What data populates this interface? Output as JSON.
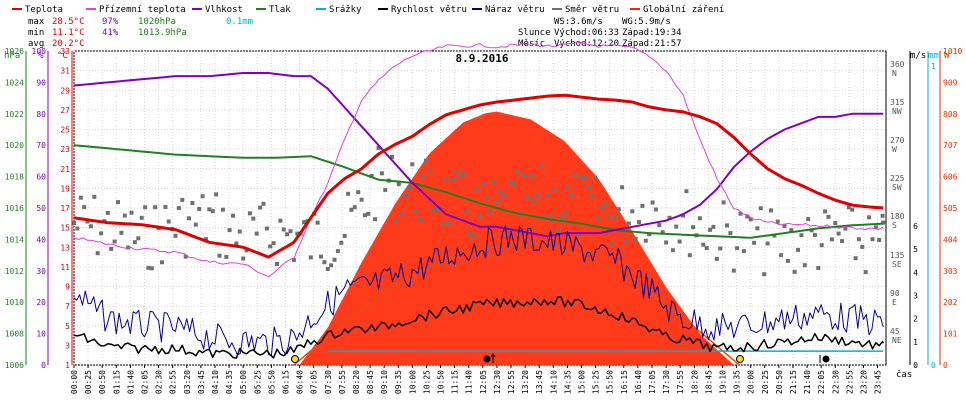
{
  "legend": [
    {
      "label": "Teplota",
      "color": "#e00000"
    },
    {
      "label": "Přízemní teplota",
      "color": "#e040e0"
    },
    {
      "label": "Vlhkost",
      "color": "#8000c0"
    },
    {
      "label": "Tlak",
      "color": "#208020"
    },
    {
      "label": "Srážky",
      "color": "#00b0d0"
    },
    {
      "label": "Rychlost větru",
      "color": "#000000"
    },
    {
      "label": "Náraz větru",
      "color": "#000090"
    },
    {
      "label": "Směr větru",
      "color": "#707070"
    },
    {
      "label": "Globální záření",
      "color": "#e03000"
    }
  ],
  "stats": {
    "max_label": "max",
    "max_temp": "28.5°C",
    "max_hum": "97%",
    "max_press": "1020hPa",
    "rain": "0.1mm",
    "min_label": "min",
    "min_temp": "11.1°C",
    "min_hum": "41%",
    "min_press": "1013.9hPa",
    "avg_label": "avg",
    "avg_temp": "20.2°C"
  },
  "wind": {
    "ws": "WS:3.6m/s",
    "wg": "WG:5.9m/s"
  },
  "sun": {
    "label": "Slunce",
    "rise": "Východ:06:33",
    "set": "Západ:19:34"
  },
  "moon": {
    "label": "Měsíc",
    "rise": "Východ:12:20",
    "set": "Západ:21:57"
  },
  "date": "8.9.2016",
  "axis_units": {
    "hpa": "hPa",
    "pct": "%",
    "degc": "°C",
    "ms": "m/s",
    "mm": "mm",
    "w": "W",
    "time": "čas"
  },
  "chart_data": {
    "type": "line",
    "title": "8.9.2016",
    "x_ticks": [
      "00:00",
      "00:25",
      "00:50",
      "01:15",
      "01:40",
      "02:05",
      "02:30",
      "02:55",
      "03:20",
      "03:45",
      "04:10",
      "04:35",
      "05:00",
      "05:25",
      "05:50",
      "06:15",
      "06:40",
      "07:05",
      "07:30",
      "07:55",
      "08:20",
      "08:45",
      "09:10",
      "09:35",
      "10:00",
      "10:25",
      "10:50",
      "11:15",
      "11:40",
      "12:05",
      "12:30",
      "12:55",
      "13:20",
      "13:45",
      "14:10",
      "14:35",
      "15:00",
      "15:25",
      "15:50",
      "16:15",
      "16:40",
      "17:05",
      "17:30",
      "17:55",
      "18:20",
      "18:45",
      "19:10",
      "19:35",
      "20:00",
      "20:25",
      "20:50",
      "21:15",
      "21:40",
      "22:05",
      "22:30",
      "22:55",
      "23:20",
      "23:45"
    ],
    "axes": {
      "pressure_hpa": {
        "min": 1006,
        "max": 1026,
        "ticks": [
          1006,
          1008,
          1010,
          1012,
          1014,
          1016,
          1018,
          1020,
          1022,
          1024,
          1026
        ]
      },
      "humidity_pct": {
        "min": 0,
        "max": 100,
        "ticks": [
          0,
          10,
          20,
          30,
          40,
          50,
          60,
          70,
          80,
          90,
          100
        ]
      },
      "temperature_c": {
        "min": 1,
        "max": 33,
        "ticks": [
          1,
          3,
          5,
          7,
          9,
          11,
          13,
          15,
          17,
          19,
          21,
          23,
          25,
          27,
          29,
          31,
          33
        ]
      },
      "wind_dir_deg": {
        "ticks": [
          "45 NE",
          "90 E",
          "135 SE",
          "180 S",
          "225 SW",
          "270 W",
          "315 NW",
          "360 N"
        ]
      },
      "wind_ms": {
        "ticks": [
          0,
          1,
          2,
          3,
          4,
          5,
          6
        ]
      },
      "rain_mm": {
        "ticks": [
          0,
          1
        ]
      },
      "radiation_w": {
        "min": 0,
        "max": 1010,
        "ticks": [
          0,
          101,
          202,
          303,
          404,
          505,
          606,
          707,
          808,
          909,
          1010
        ]
      }
    },
    "series": [
      {
        "name": "Teplota",
        "axis": "temperature_c",
        "color": "#e00000",
        "x": [
          "00:00",
          "01:00",
          "02:00",
          "03:00",
          "04:00",
          "05:00",
          "05:45",
          "06:30",
          "07:00",
          "07:30",
          "08:00",
          "08:30",
          "09:00",
          "09:30",
          "10:00",
          "10:30",
          "11:00",
          "11:30",
          "12:00",
          "12:30",
          "13:00",
          "13:30",
          "14:00",
          "14:30",
          "15:00",
          "15:30",
          "16:00",
          "16:30",
          "17:00",
          "17:30",
          "18:00",
          "18:30",
          "19:00",
          "19:30",
          "20:00",
          "20:30",
          "21:00",
          "21:30",
          "22:00",
          "22:30",
          "23:00",
          "23:30",
          "23:55"
        ],
        "y": [
          16,
          15.5,
          15.3,
          14.8,
          13.5,
          13,
          12,
          13.5,
          16,
          18.5,
          20,
          21,
          22.5,
          23.5,
          24.3,
          25.5,
          26.5,
          27,
          27.5,
          27.8,
          28,
          28.2,
          28.4,
          28.5,
          28.3,
          28.1,
          28,
          27.8,
          27.3,
          27,
          26.8,
          26.3,
          25.6,
          24.2,
          22.5,
          21,
          20,
          19.3,
          18.5,
          17.8,
          17.3,
          17.1,
          17
        ]
      },
      {
        "name": "Přízemní teplota",
        "axis": "temperature_c",
        "color": "#e040e0",
        "x": [
          "00:00",
          "01:00",
          "02:00",
          "03:00",
          "04:00",
          "05:00",
          "05:45",
          "06:30",
          "07:00",
          "07:30",
          "08:00",
          "08:30",
          "09:00",
          "09:30",
          "10:00",
          "10:30",
          "11:00",
          "11:30",
          "12:00",
          "12:30",
          "13:00",
          "13:30",
          "14:00",
          "14:30",
          "15:00",
          "15:30",
          "16:00",
          "16:30",
          "17:00",
          "17:30",
          "18:00",
          "18:30",
          "19:00",
          "19:30",
          "20:00",
          "20:30",
          "21:00",
          "21:30",
          "22:00",
          "22:30",
          "23:00",
          "23:30",
          "23:55"
        ],
        "y": [
          14,
          13.3,
          12.8,
          12.5,
          11.5,
          11.3,
          10,
          12,
          16,
          19.5,
          24,
          28,
          30,
          31.5,
          32.5,
          33,
          33.5,
          33.5,
          33.6,
          33.4,
          33.6,
          33.7,
          33.5,
          33.6,
          33.8,
          33.5,
          33.5,
          33.3,
          32.5,
          31,
          28.5,
          24,
          20,
          17,
          16,
          15.5,
          15.3,
          15.3,
          15.2,
          15.1,
          15,
          14.9,
          14.9
        ]
      },
      {
        "name": "Vlhkost",
        "axis": "humidity_pct",
        "color": "#8000c0",
        "x": [
          "00:00",
          "01:00",
          "02:00",
          "03:00",
          "04:00",
          "05:00",
          "05:45",
          "06:30",
          "07:00",
          "07:30",
          "08:00",
          "08:30",
          "09:00",
          "09:30",
          "10:00",
          "10:30",
          "11:00",
          "11:30",
          "12:00",
          "12:30",
          "13:00",
          "13:30",
          "14:00",
          "14:30",
          "15:00",
          "15:30",
          "16:00",
          "16:30",
          "17:00",
          "17:30",
          "18:00",
          "18:30",
          "19:00",
          "19:30",
          "20:00",
          "20:30",
          "21:00",
          "21:30",
          "22:00",
          "22:30",
          "23:00",
          "23:30",
          "23:55"
        ],
        "y": [
          89,
          90,
          91,
          92,
          92,
          93,
          93,
          92,
          92,
          88,
          82,
          76,
          70,
          64,
          58,
          53,
          48,
          46,
          44,
          44,
          43,
          42,
          41,
          42,
          42,
          42,
          43,
          44,
          45,
          46,
          48,
          51,
          56,
          63,
          68,
          72,
          75,
          77,
          79,
          79,
          80,
          80,
          80
        ]
      },
      {
        "name": "Tlak",
        "axis": "pressure_hpa",
        "color": "#208020",
        "x": [
          "00:00",
          "01:00",
          "02:00",
          "03:00",
          "04:00",
          "05:00",
          "06:00",
          "07:00",
          "08:00",
          "09:00",
          "10:00",
          "11:00",
          "12:00",
          "13:00",
          "14:00",
          "15:00",
          "16:00",
          "17:00",
          "18:00",
          "19:00",
          "20:00",
          "21:00",
          "22:00",
          "23:00",
          "23:55"
        ],
        "y": [
          1020,
          1019.8,
          1019.6,
          1019.4,
          1019.3,
          1019.2,
          1019.2,
          1019.3,
          1018.6,
          1017.8,
          1017.6,
          1017,
          1016.3,
          1015.7,
          1015.3,
          1015,
          1014.6,
          1014.4,
          1014.3,
          1014.2,
          1014.1,
          1014.4,
          1014.7,
          1014.9,
          1015
        ]
      },
      {
        "name": "Srážky",
        "axis": "rain_mm",
        "color": "#00b0d0",
        "x": [
          "07:30",
          "23:55"
        ],
        "y": [
          0.1,
          0.1
        ]
      },
      {
        "name": "Rychlost větru",
        "axis": "wind_ms",
        "color": "#000000",
        "x": [
          "00:00",
          "01:00",
          "02:00",
          "03:00",
          "04:00",
          "05:00",
          "06:00",
          "06:30",
          "07:00",
          "08:00",
          "09:00",
          "10:00",
          "11:00",
          "12:00",
          "13:00",
          "14:00",
          "15:00",
          "16:00",
          "17:00",
          "17:30",
          "18:00",
          "19:00",
          "20:00",
          "21:00",
          "22:00",
          "23:00",
          "23:55"
        ],
        "y": [
          1.3,
          0.8,
          0.7,
          0.7,
          0.5,
          0.5,
          0.5,
          0.6,
          1,
          1.5,
          1.6,
          2,
          2.3,
          2.6,
          2.7,
          2.8,
          2.6,
          2.2,
          1.6,
          1.2,
          1.1,
          0.7,
          0.8,
          1,
          1.2,
          1,
          0.8
        ]
      },
      {
        "name": "Náraz větru",
        "axis": "wind_ms",
        "color": "#000090",
        "x": [
          "00:00",
          "01:00",
          "02:00",
          "03:00",
          "04:00",
          "05:00",
          "06:00",
          "06:30",
          "07:00",
          "08:00",
          "09:00",
          "10:00",
          "11:00",
          "12:00",
          "13:00",
          "14:00",
          "15:00",
          "16:00",
          "17:00",
          "17:30",
          "18:00",
          "19:00",
          "20:00",
          "21:00",
          "22:00",
          "23:00",
          "23:55"
        ],
        "y": [
          3,
          2,
          1.7,
          1.6,
          1.2,
          1,
          1,
          1.2,
          2,
          3.2,
          3.5,
          4,
          4.7,
          5.2,
          5.5,
          5.3,
          5,
          4.5,
          3.3,
          2.5,
          2,
          1.6,
          1.7,
          2,
          2.2,
          2,
          1.8
        ]
      },
      {
        "name": "Směr větru",
        "axis": "wind_dir_deg",
        "color": "#707070",
        "x": [
          "00:00",
          "01:00",
          "02:00",
          "03:00",
          "04:00",
          "05:00",
          "06:00",
          "07:00",
          "08:00",
          "09:00",
          "10:00",
          "11:00",
          "12:00",
          "13:00",
          "14:00",
          "15:00",
          "16:00",
          "17:00",
          "18:00",
          "19:00",
          "20:00",
          "21:00",
          "22:00",
          "23:00",
          "23:55"
        ],
        "y": [
          170,
          165,
          150,
          170,
          175,
          150,
          160,
          150,
          160,
          220,
          210,
          200,
          180,
          190,
          200,
          190,
          180,
          190,
          175,
          160,
          150,
          145,
          150,
          150,
          140
        ]
      },
      {
        "name": "Globální záření",
        "axis": "radiation_w",
        "color": "#e03000",
        "x": [
          "06:40",
          "07:30",
          "08:30",
          "09:30",
          "10:30",
          "11:30",
          "12:10",
          "12:30",
          "13:30",
          "14:30",
          "15:30",
          "16:30",
          "17:30",
          "18:30",
          "19:30"
        ],
        "y": [
          0,
          120,
          330,
          520,
          680,
          780,
          810,
          815,
          790,
          720,
          600,
          430,
          250,
          100,
          0
        ]
      }
    ]
  }
}
